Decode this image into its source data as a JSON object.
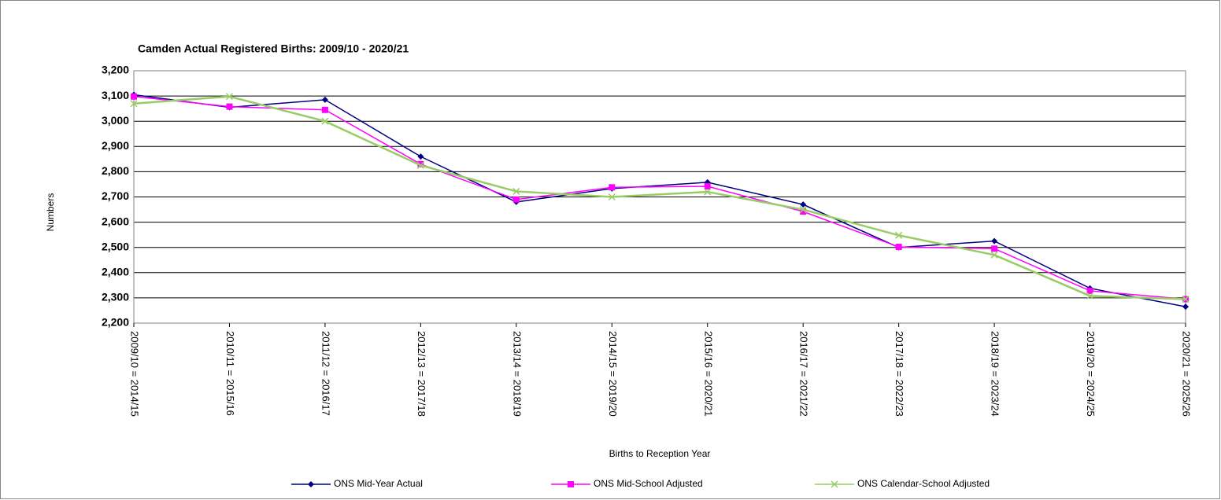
{
  "chart_data": {
    "type": "line",
    "title": "Camden Actual Registered Births: 2009/10 - 2020/21",
    "x_label": "Births to Reception Year",
    "y_label": "Numbers",
    "categories": [
      "2009/10 = 2014/15",
      "2010/11 = 2015/16",
      "2011/12 = 2016/17",
      "2012/13 = 2017/18",
      "2013/14 = 2018/19",
      "2014/15 = 2019/20",
      "2015/16 = 2020/21",
      "2016/17 = 2021/22",
      "2017/18 = 2022/23",
      "2018/19 = 2023/24",
      "2019/20 = 2024/25",
      "2020/21 = 2025/26"
    ],
    "series": [
      {
        "name": "ONS Mid-Year Actual",
        "color": "#000080",
        "marker": "diamond",
        "values": [
          3105,
          3055,
          3085,
          2860,
          2680,
          2733,
          2758,
          2670,
          2500,
          2525,
          2338,
          2265
        ]
      },
      {
        "name": "ONS Mid-School Adjusted",
        "color": "#ff00ff",
        "marker": "square",
        "values": [
          3098,
          3058,
          3045,
          2830,
          2690,
          2738,
          2742,
          2642,
          2502,
          2495,
          2328,
          2295
        ]
      },
      {
        "name": "ONS Calendar-School Adjusted",
        "color": "#99cc66",
        "marker": "x",
        "values": [
          3070,
          3098,
          3000,
          2825,
          2722,
          2700,
          2720,
          2650,
          2548,
          2470,
          2308,
          2295
        ]
      }
    ],
    "ylim": [
      2200,
      3200
    ],
    "yticks": [
      {
        "value": 2200,
        "label": "2,200"
      },
      {
        "value": 2300,
        "label": "2,300"
      },
      {
        "value": 2400,
        "label": "2,400"
      },
      {
        "value": 2500,
        "label": "2,500"
      },
      {
        "value": 2600,
        "label": "2,600"
      },
      {
        "value": 2700,
        "label": "2,700"
      },
      {
        "value": 2800,
        "label": "2,800"
      },
      {
        "value": 2900,
        "label": "2,900"
      },
      {
        "value": 3000,
        "label": "3,000"
      },
      {
        "value": 3100,
        "label": "3,100"
      },
      {
        "value": 3200,
        "label": "3,200"
      }
    ],
    "grid": true,
    "legend": "bottom"
  }
}
